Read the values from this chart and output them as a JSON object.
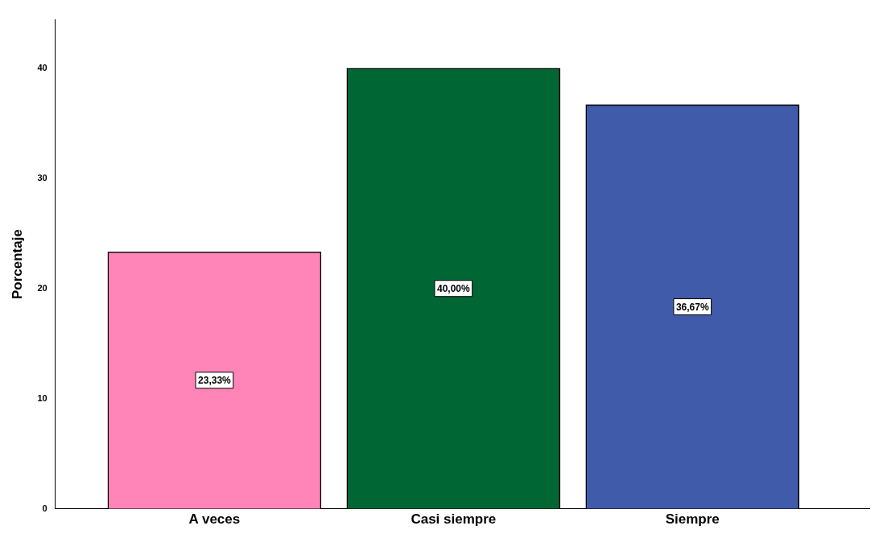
{
  "chart_data": {
    "type": "bar",
    "ylabel": "Porcentaje",
    "categories": [
      "A veces",
      "Casi siempre",
      "Siempre"
    ],
    "values": [
      23.33,
      40.0,
      36.67
    ],
    "colors": [
      "#ff85b8",
      "#006633",
      "#3f5ba9"
    ],
    "value_labels": [
      "23,33%",
      "40,00%",
      "36,67%"
    ],
    "ylim": [
      0,
      44.4
    ],
    "yticks": [
      0,
      10,
      20,
      30,
      40
    ],
    "grid": false,
    "legend": false
  }
}
